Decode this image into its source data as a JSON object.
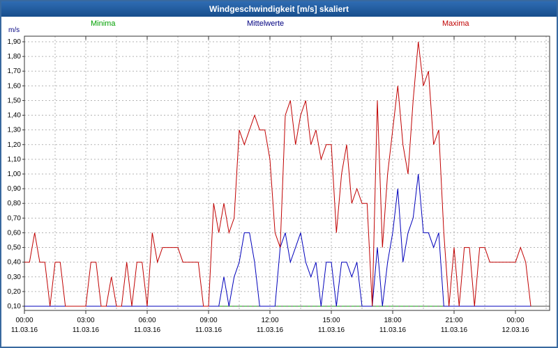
{
  "window": {
    "title": "Windgeschwindigkeit [m/s] skaliert"
  },
  "axis": {
    "unit_label": "m/s"
  },
  "legend": [
    {
      "label": "Minima",
      "color": "#00a000"
    },
    {
      "label": "Mittelwerte",
      "color": "#000080"
    },
    {
      "label": "Maxima",
      "color": "#c00000"
    }
  ],
  "chart_data": {
    "type": "line",
    "title": "Windgeschwindigkeit [m/s] skaliert",
    "ylabel": "m/s",
    "ylim": [
      0.1,
      1.9
    ],
    "y_tick_step": 0.1,
    "y_tick_labels": [
      "1,90",
      "1,80",
      "1,70",
      "1,60",
      "1,50",
      "1,40",
      "1,30",
      "1,20",
      "1,10",
      "1,00",
      "0,90",
      "0,80",
      "0,70",
      "0,60",
      "0,50",
      "0,40",
      "0,30",
      "0,20",
      "0,10"
    ],
    "grid": true,
    "x_unit": "hours",
    "x_start_hour": 0,
    "x_span_hours": 25.67,
    "sample_interval_hours": 0.25,
    "x_ticks": [
      {
        "hour": 0,
        "time": "00:00",
        "date": "11.03.16"
      },
      {
        "hour": 3,
        "time": "03:00",
        "date": "11.03.16"
      },
      {
        "hour": 6,
        "time": "06:00",
        "date": "11.03.16"
      },
      {
        "hour": 9,
        "time": "09:00",
        "date": "11.03.16"
      },
      {
        "hour": 12,
        "time": "12:00",
        "date": "11.03.16"
      },
      {
        "hour": 15,
        "time": "15:00",
        "date": "11.03.16"
      },
      {
        "hour": 18,
        "time": "18:00",
        "date": "11.03.16"
      },
      {
        "hour": 21,
        "time": "21:00",
        "date": "11.03.16"
      },
      {
        "hour": 24,
        "time": "00:00",
        "date": "12.03.16"
      }
    ],
    "series": [
      {
        "name": "Minima",
        "color": "#00a000",
        "dashed": true,
        "values": [
          0.1,
          0.1,
          0.1,
          0.1,
          0.1,
          0.1,
          0.1,
          0.1,
          0.1,
          0.1,
          0.1,
          0.1,
          0.1,
          0.1,
          0.1,
          0.1,
          0.1,
          0.1,
          0.1,
          0.1,
          0.1,
          0.1,
          0.1,
          0.1,
          0.1,
          0.1,
          0.1,
          0.1,
          0.1,
          0.1,
          0.1,
          0.1,
          0.1,
          0.1,
          0.1,
          0.1,
          0.1,
          0.1,
          0.1,
          0.1,
          0.1,
          0.1,
          0.1,
          0.1,
          0.1,
          0.1,
          0.1,
          0.1,
          0.1,
          0.1,
          0.1,
          0.1,
          0.1,
          0.1,
          0.1,
          0.1,
          0.1,
          0.1,
          0.1,
          0.1,
          0.1,
          0.1,
          0.1,
          0.1,
          0.1,
          0.1,
          0.1,
          0.1,
          0.1,
          0.1,
          0.1,
          0.1,
          0.1,
          0.1,
          0.1,
          0.1,
          0.1,
          0.1,
          0.1,
          0.1,
          0.1,
          0.1,
          0.1,
          0.1,
          0.1,
          0.1,
          0.1,
          0.1,
          0.1,
          0.1,
          0.1,
          0.1,
          0.1,
          0.1,
          0.1,
          0.1,
          0.1,
          0.1,
          0.1,
          0.1
        ]
      },
      {
        "name": "Mittelwerte",
        "color": "#0000bb",
        "dashed": false,
        "values": [
          0.1,
          0.1,
          0.1,
          0.1,
          0.1,
          0.1,
          0.1,
          0.1,
          0.1,
          0.1,
          0.1,
          0.1,
          0.1,
          0.1,
          0.1,
          0.1,
          0.1,
          0.1,
          0.1,
          0.1,
          0.1,
          0.1,
          0.1,
          0.1,
          0.1,
          0.1,
          0.1,
          0.1,
          0.1,
          0.1,
          0.1,
          0.1,
          0.1,
          0.1,
          0.1,
          0.1,
          0.1,
          0.1,
          0.1,
          0.3,
          0.1,
          0.3,
          0.4,
          0.6,
          0.6,
          0.4,
          0.1,
          0.1,
          0.1,
          0.1,
          0.5,
          0.6,
          0.4,
          0.5,
          0.6,
          0.4,
          0.3,
          0.4,
          0.1,
          0.4,
          0.4,
          0.1,
          0.4,
          0.4,
          0.3,
          0.4,
          0.1,
          0.1,
          0.1,
          0.5,
          0.1,
          0.4,
          0.6,
          0.9,
          0.4,
          0.6,
          0.7,
          1.0,
          0.6,
          0.6,
          0.5,
          0.6,
          0.1,
          0.1,
          0.1,
          0.1,
          0.1,
          0.1,
          0.1,
          0.1,
          0.1,
          0.1,
          0.1,
          0.1,
          0.1,
          0.1,
          0.1,
          0.1,
          0.1,
          0.1
        ]
      },
      {
        "name": "Maxima",
        "color": "#c00000",
        "dashed": false,
        "values": [
          0.4,
          0.4,
          0.6,
          0.4,
          0.4,
          0.1,
          0.4,
          0.4,
          0.1,
          0.1,
          0.1,
          0.1,
          0.1,
          0.4,
          0.4,
          0.1,
          0.1,
          0.3,
          0.1,
          0.1,
          0.4,
          0.1,
          0.4,
          0.4,
          0.1,
          0.6,
          0.4,
          0.5,
          0.5,
          0.5,
          0.5,
          0.4,
          0.4,
          0.4,
          0.4,
          0.1,
          0.1,
          0.8,
          0.6,
          0.8,
          0.6,
          0.7,
          1.3,
          1.2,
          1.3,
          1.4,
          1.3,
          1.3,
          1.1,
          0.6,
          0.5,
          1.4,
          1.5,
          1.2,
          1.4,
          1.5,
          1.2,
          1.3,
          1.1,
          1.2,
          1.2,
          0.6,
          1.0,
          1.2,
          0.8,
          0.9,
          0.8,
          0.8,
          0.1,
          1.5,
          0.5,
          1.0,
          1.3,
          1.6,
          1.2,
          1.0,
          1.5,
          1.9,
          1.6,
          1.7,
          1.2,
          1.3,
          0.6,
          0.1,
          0.5,
          0.1,
          0.5,
          0.5,
          0.1,
          0.5,
          0.5,
          0.4,
          0.4,
          0.4,
          0.4,
          0.4,
          0.4,
          0.5,
          0.4,
          0.1
        ]
      }
    ]
  }
}
